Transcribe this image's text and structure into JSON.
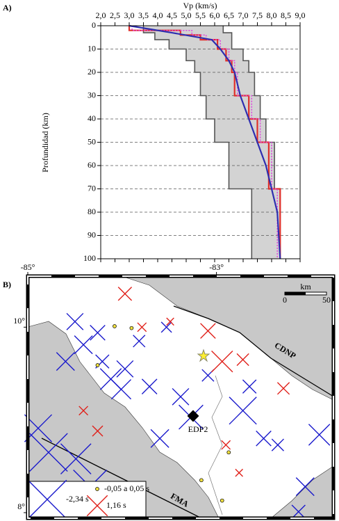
{
  "chart_data": [
    {
      "type": "line",
      "panel": "A)",
      "xlabel": "Vp (km/s)",
      "ylabel": "Profundidad (km)",
      "xlim": [
        2,
        9
      ],
      "xticks": [
        {
          "value": 2,
          "label": "2,0"
        },
        {
          "value": 2.5,
          "label": "2,5"
        },
        {
          "value": 3,
          "label": "3,0"
        },
        {
          "value": 3.5,
          "label": "3,5"
        },
        {
          "value": 4,
          "label": "4,0"
        },
        {
          "value": 4.5,
          "label": "4,5"
        },
        {
          "value": 5,
          "label": "5,0"
        },
        {
          "value": 5.5,
          "label": "5,5"
        },
        {
          "value": 6,
          "label": "6,0"
        },
        {
          "value": 6.5,
          "label": "6,5"
        },
        {
          "value": 7,
          "label": "7,0"
        },
        {
          "value": 7.5,
          "label": "7,5"
        },
        {
          "value": 8,
          "label": "8,0"
        },
        {
          "value": 8.5,
          "label": "8,5"
        },
        {
          "value": 9,
          "label": "9,0"
        }
      ],
      "ylim": [
        100,
        0
      ],
      "yticks": [
        0,
        10,
        20,
        30,
        40,
        50,
        60,
        70,
        80,
        90,
        100
      ],
      "grid": true,
      "band": {
        "color": "#d3d3d3",
        "edge_color": "#555555",
        "left_x": [
          3.5,
          3.5,
          3.9,
          3.9,
          4.4,
          4.4,
          5.0,
          5.0,
          5.3,
          5.3,
          5.5,
          5.5,
          5.7,
          5.7,
          6.0,
          6.0,
          6.5,
          6.5,
          7.3,
          7.3
        ],
        "left_values": [
          0,
          3,
          3,
          6,
          6,
          10,
          10,
          15,
          15,
          20,
          20,
          30,
          30,
          40,
          40,
          50,
          50,
          70,
          70,
          100
        ],
        "right_x": [
          6.3,
          6.3,
          6.6,
          6.6,
          7.0,
          7.0,
          7.2,
          7.2,
          7.4,
          7.4,
          7.6,
          7.6,
          7.8,
          7.8,
          8.1,
          8.1,
          8.3,
          8.3
        ],
        "right_values": [
          0,
          3,
          3,
          10,
          10,
          15,
          15,
          20,
          20,
          30,
          30,
          40,
          40,
          50,
          50,
          70,
          70,
          100
        ]
      },
      "series": [
        {
          "color": "#e0302a",
          "style": "solid",
          "x": [
            3.0,
            3.0,
            4.8,
            4.8,
            5.5,
            5.5,
            6.1,
            6.1,
            6.4,
            6.4,
            6.6,
            6.6,
            6.7,
            6.7,
            7.2,
            7.2,
            7.5,
            7.5,
            7.9,
            7.9,
            8.3,
            8.3
          ],
          "values": [
            0,
            2,
            2,
            4,
            4,
            6,
            6,
            10,
            10,
            15,
            15,
            20,
            20,
            30,
            30,
            40,
            40,
            50,
            50,
            70,
            70,
            100
          ]
        },
        {
          "color": "#e040e0",
          "style": "dotted",
          "x": [
            3.1,
            3.1,
            5.2,
            5.2,
            5.7,
            5.7,
            6.2,
            6.2,
            6.5,
            6.5,
            6.7,
            6.7,
            6.8,
            6.8,
            7.3,
            7.3,
            7.6,
            7.6,
            8.0,
            8.0,
            8.2,
            8.2
          ],
          "values": [
            0,
            2,
            2,
            4,
            4,
            6,
            6,
            10,
            10,
            15,
            15,
            20,
            20,
            30,
            30,
            40,
            40,
            50,
            50,
            70,
            70,
            100
          ]
        },
        {
          "color": "#2e2eb0",
          "style": "solid",
          "x": [
            3.0,
            4.5,
            5.9,
            6.2,
            6.5,
            6.7,
            6.9,
            7.2,
            7.5,
            7.8,
            8.0,
            8.2,
            8.3
          ],
          "values": [
            0,
            3,
            6,
            10,
            15,
            20,
            30,
            40,
            50,
            60,
            70,
            80,
            100
          ]
        }
      ]
    },
    {
      "type": "scatter",
      "panel": "B)",
      "xlim": [
        -85,
        -81.76
      ],
      "ylim": [
        7.94,
        10.55
      ],
      "xticks": [
        {
          "value": -85,
          "label": "-85°"
        },
        {
          "value": -83,
          "label": "-83°"
        }
      ],
      "yticks": [
        {
          "value": 8,
          "label": "8°"
        },
        {
          "value": 10,
          "label": "10°"
        }
      ],
      "land_color": "#c8c8c8",
      "series": [
        {
          "color": "#1a1acc",
          "marker": "cross",
          "x": [
            -84.5,
            -84.26,
            -84.41,
            -84.21,
            -84.12,
            -83.97,
            -83.82,
            -83.71,
            -83.53,
            -83.38,
            -83.27,
            -84.89,
            -84.78,
            -84.49,
            -84.34,
            -82.72,
            -82.5,
            -81.91,
            -82.06,
            -82.13,
            -83.6,
            -83.09,
            -82.65,
            -82.35,
            -84.6,
            -84.01
          ],
          "y": [
            10.06,
            9.94,
            9.81,
            9.63,
            9.44,
            9.55,
            9.85,
            9.36,
            10.0,
            9.25,
            9.03,
            8.91,
            8.65,
            8.58,
            8.28,
            9.1,
            8.8,
            8.84,
            8.28,
            8.01,
            8.8,
            9.48,
            9.36,
            8.73,
            9.63,
            9.33
          ],
          "values": [
            -0.9,
            -0.8,
            -1.0,
            -0.7,
            -1.2,
            -0.9,
            -0.6,
            -0.8,
            -0.5,
            -0.9,
            -1.4,
            -1.6,
            -2.3,
            -1.8,
            -2.0,
            -1.6,
            -0.8,
            -1.2,
            -1.0,
            -0.7,
            -1.0,
            -0.6,
            -0.7,
            -0.6,
            -1.0,
            -1.1
          ]
        },
        {
          "color": "#e0201a",
          "marker": "cross",
          "x": [
            -83.97,
            -83.79,
            -83.09,
            -82.94,
            -82.72,
            -82.29,
            -84.41,
            -84.26,
            -82.9,
            -82.76,
            -83.49
          ],
          "y": [
            10.36,
            10.0,
            9.96,
            9.63,
            9.65,
            9.34,
            9.1,
            8.88,
            8.73,
            8.43,
            10.06
          ],
          "values": [
            0.7,
            0.4,
            0.8,
            1.2,
            0.6,
            0.6,
            0.4,
            0.5,
            0.4,
            0.3,
            0.3
          ]
        },
        {
          "color": "#f0e040",
          "marker": "circle",
          "x": [
            -84.08,
            -83.9,
            -84.26,
            -82.87,
            -82.94,
            -83.16
          ],
          "y": [
            10.01,
            9.99,
            9.59,
            8.65,
            8.13,
            8.35
          ],
          "values": [
            0.03,
            -0.02,
            0.01,
            -0.04,
            0.02,
            0.05
          ]
        }
      ],
      "legend": [
        {
          "label": "-2,34 s",
          "value": -2.34,
          "color": "#1a1acc",
          "marker": "cross"
        },
        {
          "label": "-0,05 a 0,05 s",
          "color": "#f0e040",
          "marker": "circle"
        },
        {
          "label": "1,16 s",
          "value": 1.16,
          "color": "#e0201a",
          "marker": "cross"
        }
      ],
      "station": "EDP2",
      "trench_north": "CDNP",
      "trench_south": "FMA",
      "scale": {
        "unit": "km",
        "ticks": [
          0,
          50
        ]
      }
    }
  ]
}
